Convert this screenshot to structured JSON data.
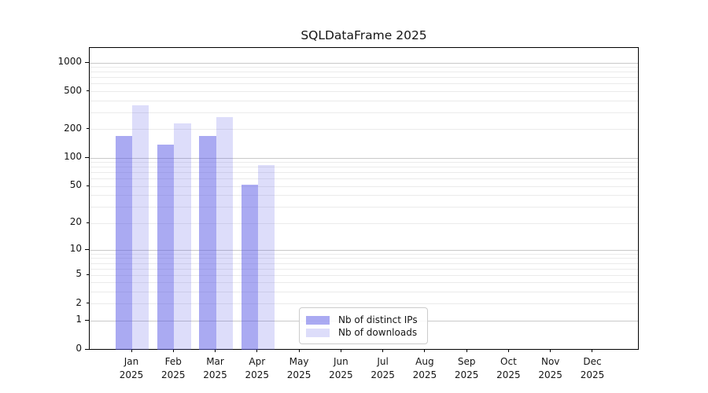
{
  "chart_data": {
    "type": "bar",
    "title": "SQLDataFrame 2025",
    "categories": [
      "Jan 2025",
      "Feb 2025",
      "Mar 2025",
      "Apr 2025",
      "May 2025",
      "Jun 2025",
      "Jul 2025",
      "Aug 2025",
      "Sep 2025",
      "Oct 2025",
      "Nov 2025",
      "Dec 2025"
    ],
    "x_tick_months": [
      "Jan",
      "Feb",
      "Mar",
      "Apr",
      "May",
      "Jun",
      "Jul",
      "Aug",
      "Sep",
      "Oct",
      "Nov",
      "Dec"
    ],
    "x_tick_year": "2025",
    "series": [
      {
        "name": "Nb of distinct IPs",
        "base_color": "#5555e6",
        "alpha": 0.5,
        "values": [
          172,
          138,
          172,
          52,
          null,
          null,
          null,
          null,
          null,
          null,
          null,
          null
        ]
      },
      {
        "name": "Nb of downloads",
        "base_color": "#5555e6",
        "alpha": 0.2,
        "values": [
          361,
          233,
          269,
          84,
          null,
          null,
          null,
          null,
          null,
          null,
          null,
          null
        ]
      }
    ],
    "yscale": "log1p",
    "ylim": [
      0,
      1434
    ],
    "y_ticks": [
      0,
      1,
      2,
      5,
      10,
      20,
      50,
      100,
      200,
      500,
      1000
    ],
    "y_major_gridline_values": [
      1,
      10,
      100,
      1000
    ],
    "grid": "on",
    "legend_position": "inside lower center",
    "xlabel": "",
    "ylabel": ""
  },
  "colors": {
    "background": "#ffffff",
    "spine": "#000000",
    "grid_major": "#c9c9c9",
    "grid_minor": "#ebebeb",
    "text": "#151515",
    "legend_border": "#cccccc",
    "bar_distinct_ips_effective": "#aaaaf3",
    "bar_downloads_effective": "#ddddfa"
  }
}
